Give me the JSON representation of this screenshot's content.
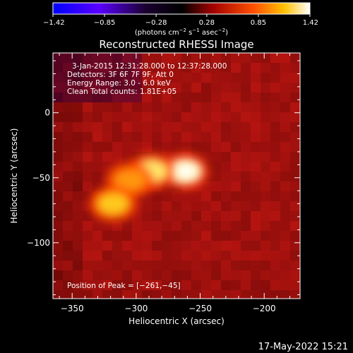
{
  "chart_data": {
    "type": "heatmap",
    "title": "Reconstructed RHESSI Image",
    "xlabel": "Heliocentric X (arcsec)",
    "ylabel": "Heliocentric Y (arcsec)",
    "xlim": [
      -365,
      -172
    ],
    "ylim": [
      -143,
      46
    ],
    "x_ticks": [
      -350,
      -300,
      -250,
      -200
    ],
    "x_tick_labels": [
      "−350",
      "−300",
      "−250",
      "−200"
    ],
    "y_ticks": [
      0,
      -50,
      -100
    ],
    "y_tick_labels": [
      "0",
      "−50",
      "−100"
    ],
    "info_lines": [
      "3-Jan-2015 12:31:28.000 to 12:37:28.000",
      "Detectors: 3F 6F 7F 9F, Att 0",
      "Energy Range: 3.0 - 6.0 keV",
      "Clean    Total counts: 1.81E+05"
    ],
    "peak_label": "Position of Peak = [−261,−45]",
    "peak_position": [
      -261,
      -45
    ],
    "sources": [
      {
        "x": -262,
        "y": -45,
        "intensity": 1.42
      },
      {
        "x": -288,
        "y": -45,
        "intensity": 1.3
      },
      {
        "x": -305,
        "y": -52,
        "intensity": 0.85
      },
      {
        "x": -318,
        "y": -70,
        "intensity": 1.05
      }
    ],
    "colorbar": {
      "min": -1.42,
      "max": 1.42,
      "ticks": [
        -1.42,
        -0.85,
        -0.28,
        0.28,
        0.85,
        1.42
      ],
      "tick_labels": [
        "−1.42",
        "−0.85",
        "−0.28",
        "0.28",
        "0.85",
        "1.42"
      ],
      "units_text": "(photons cm",
      "units_sup1": "−2",
      "units_mid1": " s",
      "units_sup2": "−1",
      "units_mid2": " asec",
      "units_sup3": "−2",
      "units_end": ")"
    },
    "colors": {
      "background": "#000000",
      "foreground": "#ffffff",
      "colormap": [
        "#0000ff",
        "#6a00ff",
        "#000000",
        "#c80000",
        "#ff7a00",
        "#ffff80",
        "#ffffff"
      ]
    },
    "grid": false,
    "legend": "none"
  },
  "footer": {
    "timestamp": "17-May-2022 15:21"
  }
}
